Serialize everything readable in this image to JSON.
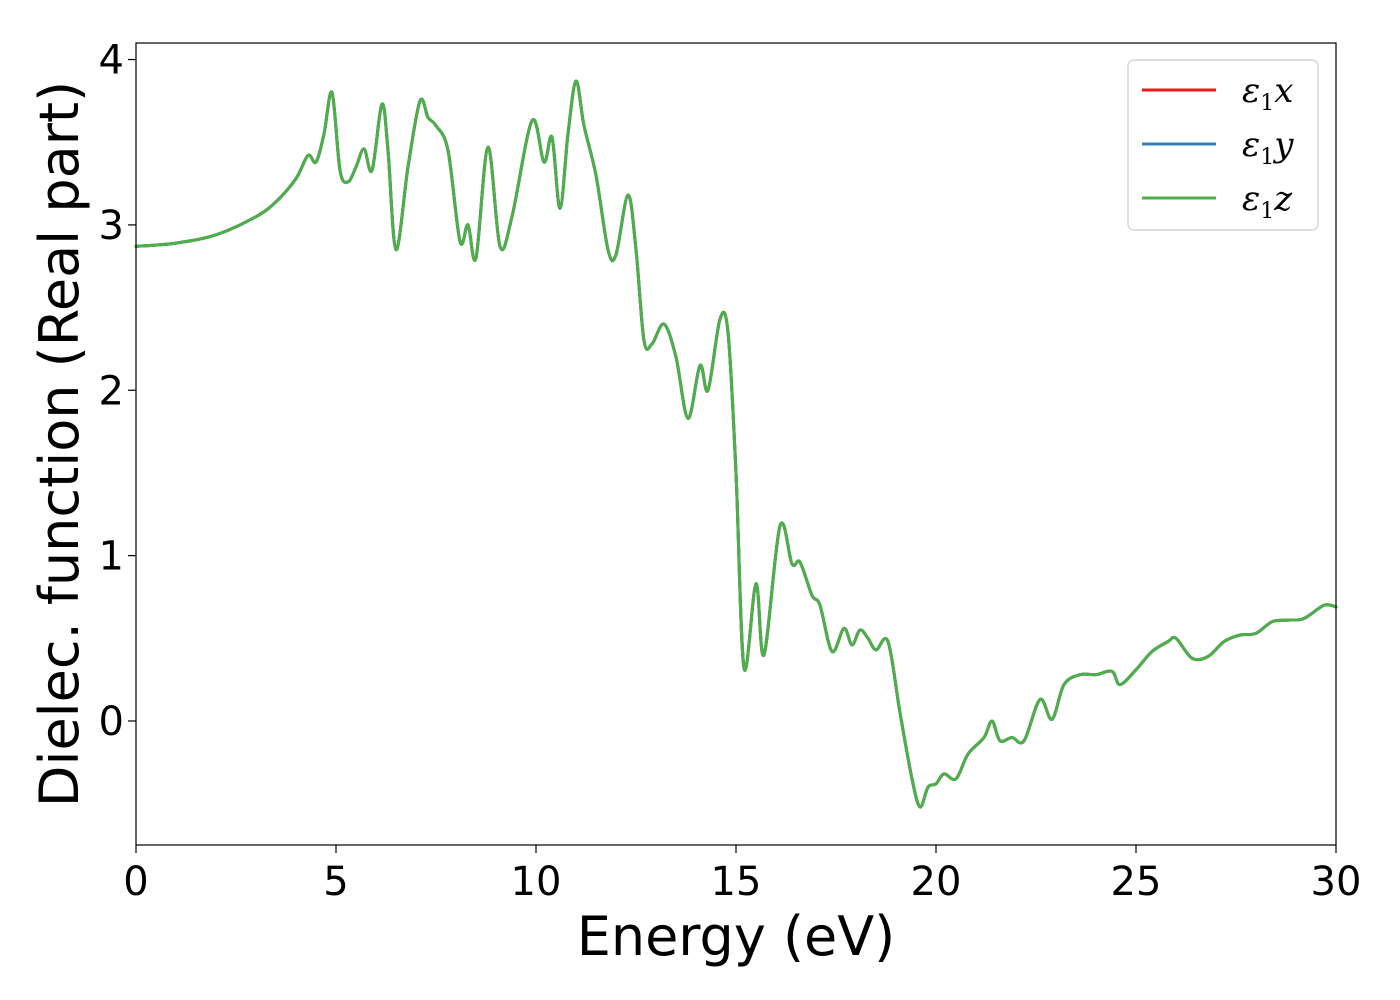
{
  "chart_data": {
    "type": "line",
    "xlabel": "Energy (eV)",
    "ylabel": "Dielec. function (Real part)",
    "xlim": [
      0,
      30
    ],
    "ylim": [
      -0.75,
      4.1
    ],
    "xticks": [
      0,
      5,
      10,
      15,
      20,
      25,
      30
    ],
    "yticks": [
      0,
      1,
      2,
      3,
      4
    ],
    "grid": false,
    "legend_position": "top-right",
    "series": [
      {
        "name": "ε1x",
        "legend": {
          "base": "ε",
          "sub": "1",
          "tail": "x"
        },
        "color": "#e41a1c",
        "x": [
          0,
          1,
          2,
          3,
          3.5,
          4,
          4.3,
          4.5,
          4.7,
          4.9,
          5.1,
          5.3,
          5.5,
          5.7,
          5.9,
          6.15,
          6.3,
          6.5,
          6.8,
          7.1,
          7.3,
          7.5,
          7.8,
          8.1,
          8.3,
          8.5,
          8.8,
          9.1,
          9.4,
          9.9,
          10.2,
          10.4,
          10.6,
          10.8,
          11.0,
          11.2,
          11.5,
          11.8,
          12.0,
          12.3,
          12.5,
          12.7,
          12.9,
          13.2,
          13.5,
          13.8,
          14.1,
          14.3,
          14.6,
          14.8,
          15.0,
          15.2,
          15.5,
          15.7,
          16.1,
          16.4,
          16.6,
          16.9,
          17.1,
          17.4,
          17.7,
          17.9,
          18.1,
          18.3,
          18.5,
          18.8,
          19.1,
          19.4,
          19.6,
          19.8,
          20.0,
          20.2,
          20.5,
          20.8,
          21.2,
          21.4,
          21.6,
          21.9,
          22.2,
          22.6,
          22.9,
          23.2,
          23.6,
          24.0,
          24.4,
          24.6,
          25.0,
          25.4,
          25.8,
          26.0,
          26.4,
          26.8,
          27.2,
          27.6,
          28.0,
          28.4,
          28.8,
          29.2,
          29.7,
          30.0
        ],
        "y": [
          2.87,
          2.89,
          2.94,
          3.05,
          3.14,
          3.28,
          3.42,
          3.38,
          3.55,
          3.8,
          3.33,
          3.26,
          3.35,
          3.46,
          3.33,
          3.73,
          3.45,
          2.85,
          3.35,
          3.75,
          3.65,
          3.6,
          3.45,
          2.9,
          3.0,
          2.8,
          3.47,
          2.87,
          3.05,
          3.63,
          3.38,
          3.53,
          3.1,
          3.55,
          3.87,
          3.6,
          3.3,
          2.85,
          2.82,
          3.18,
          2.85,
          2.3,
          2.28,
          2.4,
          2.2,
          1.83,
          2.15,
          2.0,
          2.43,
          2.35,
          1.5,
          0.32,
          0.83,
          0.4,
          1.18,
          0.95,
          0.96,
          0.76,
          0.7,
          0.42,
          0.56,
          0.46,
          0.55,
          0.5,
          0.43,
          0.48,
          0.05,
          -0.35,
          -0.52,
          -0.4,
          -0.38,
          -0.32,
          -0.35,
          -0.2,
          -0.1,
          0.0,
          -0.12,
          -0.1,
          -0.12,
          0.13,
          0.01,
          0.22,
          0.28,
          0.28,
          0.3,
          0.22,
          0.31,
          0.42,
          0.48,
          0.5,
          0.38,
          0.39,
          0.48,
          0.52,
          0.53,
          0.6,
          0.61,
          0.62,
          0.7,
          0.69
        ]
      },
      {
        "name": "ε1y",
        "legend": {
          "base": "ε",
          "sub": "1",
          "tail": "y"
        },
        "color": "#377eb8",
        "x": [
          0,
          1,
          2,
          3,
          3.5,
          4,
          4.3,
          4.5,
          4.7,
          4.9,
          5.1,
          5.3,
          5.5,
          5.7,
          5.9,
          6.15,
          6.3,
          6.5,
          6.8,
          7.1,
          7.3,
          7.5,
          7.8,
          8.1,
          8.3,
          8.5,
          8.8,
          9.1,
          9.4,
          9.9,
          10.2,
          10.4,
          10.6,
          10.8,
          11.0,
          11.2,
          11.5,
          11.8,
          12.0,
          12.3,
          12.5,
          12.7,
          12.9,
          13.2,
          13.5,
          13.8,
          14.1,
          14.3,
          14.6,
          14.8,
          15.0,
          15.2,
          15.5,
          15.7,
          16.1,
          16.4,
          16.6,
          16.9,
          17.1,
          17.4,
          17.7,
          17.9,
          18.1,
          18.3,
          18.5,
          18.8,
          19.1,
          19.4,
          19.6,
          19.8,
          20.0,
          20.2,
          20.5,
          20.8,
          21.2,
          21.4,
          21.6,
          21.9,
          22.2,
          22.6,
          22.9,
          23.2,
          23.6,
          24.0,
          24.4,
          24.6,
          25.0,
          25.4,
          25.8,
          26.0,
          26.4,
          26.8,
          27.2,
          27.6,
          28.0,
          28.4,
          28.8,
          29.2,
          29.7,
          30.0
        ],
        "y": [
          2.87,
          2.89,
          2.94,
          3.05,
          3.14,
          3.28,
          3.42,
          3.38,
          3.55,
          3.8,
          3.33,
          3.26,
          3.35,
          3.46,
          3.33,
          3.73,
          3.45,
          2.85,
          3.35,
          3.75,
          3.65,
          3.6,
          3.45,
          2.9,
          3.0,
          2.8,
          3.47,
          2.87,
          3.05,
          3.63,
          3.38,
          3.53,
          3.1,
          3.55,
          3.87,
          3.6,
          3.3,
          2.85,
          2.82,
          3.18,
          2.85,
          2.3,
          2.28,
          2.4,
          2.2,
          1.83,
          2.15,
          2.0,
          2.43,
          2.35,
          1.5,
          0.32,
          0.83,
          0.4,
          1.18,
          0.95,
          0.96,
          0.76,
          0.7,
          0.42,
          0.56,
          0.46,
          0.55,
          0.5,
          0.43,
          0.48,
          0.05,
          -0.35,
          -0.52,
          -0.4,
          -0.38,
          -0.32,
          -0.35,
          -0.2,
          -0.1,
          0.0,
          -0.12,
          -0.1,
          -0.12,
          0.13,
          0.01,
          0.22,
          0.28,
          0.28,
          0.3,
          0.22,
          0.31,
          0.42,
          0.48,
          0.5,
          0.38,
          0.39,
          0.48,
          0.52,
          0.53,
          0.6,
          0.61,
          0.62,
          0.7,
          0.69
        ]
      },
      {
        "name": "ε1z",
        "legend": {
          "base": "ε",
          "sub": "1",
          "tail": "z"
        },
        "color": "#4daf4a",
        "x": [
          0,
          1,
          2,
          3,
          3.5,
          4,
          4.3,
          4.5,
          4.7,
          4.9,
          5.1,
          5.3,
          5.5,
          5.7,
          5.9,
          6.15,
          6.3,
          6.5,
          6.8,
          7.1,
          7.3,
          7.5,
          7.8,
          8.1,
          8.3,
          8.5,
          8.8,
          9.1,
          9.4,
          9.9,
          10.2,
          10.4,
          10.6,
          10.8,
          11.0,
          11.2,
          11.5,
          11.8,
          12.0,
          12.3,
          12.5,
          12.7,
          12.9,
          13.2,
          13.5,
          13.8,
          14.1,
          14.3,
          14.6,
          14.8,
          15.0,
          15.2,
          15.5,
          15.7,
          16.1,
          16.4,
          16.6,
          16.9,
          17.1,
          17.4,
          17.7,
          17.9,
          18.1,
          18.3,
          18.5,
          18.8,
          19.1,
          19.4,
          19.6,
          19.8,
          20.0,
          20.2,
          20.5,
          20.8,
          21.2,
          21.4,
          21.6,
          21.9,
          22.2,
          22.6,
          22.9,
          23.2,
          23.6,
          24.0,
          24.4,
          24.6,
          25.0,
          25.4,
          25.8,
          26.0,
          26.4,
          26.8,
          27.2,
          27.6,
          28.0,
          28.4,
          28.8,
          29.2,
          29.7,
          30.0
        ],
        "y": [
          2.87,
          2.89,
          2.94,
          3.05,
          3.14,
          3.28,
          3.42,
          3.38,
          3.55,
          3.8,
          3.33,
          3.26,
          3.35,
          3.46,
          3.33,
          3.73,
          3.45,
          2.85,
          3.35,
          3.75,
          3.65,
          3.6,
          3.45,
          2.9,
          3.0,
          2.8,
          3.47,
          2.87,
          3.05,
          3.63,
          3.38,
          3.53,
          3.1,
          3.55,
          3.87,
          3.6,
          3.3,
          2.85,
          2.82,
          3.18,
          2.85,
          2.3,
          2.28,
          2.4,
          2.2,
          1.83,
          2.15,
          2.0,
          2.43,
          2.35,
          1.5,
          0.32,
          0.83,
          0.4,
          1.18,
          0.95,
          0.96,
          0.76,
          0.7,
          0.42,
          0.56,
          0.46,
          0.55,
          0.5,
          0.43,
          0.48,
          0.05,
          -0.35,
          -0.52,
          -0.4,
          -0.38,
          -0.32,
          -0.35,
          -0.2,
          -0.1,
          0.0,
          -0.12,
          -0.1,
          -0.12,
          0.13,
          0.01,
          0.22,
          0.28,
          0.28,
          0.3,
          0.22,
          0.31,
          0.42,
          0.48,
          0.5,
          0.38,
          0.39,
          0.48,
          0.52,
          0.53,
          0.6,
          0.61,
          0.62,
          0.7,
          0.69
        ]
      }
    ]
  }
}
